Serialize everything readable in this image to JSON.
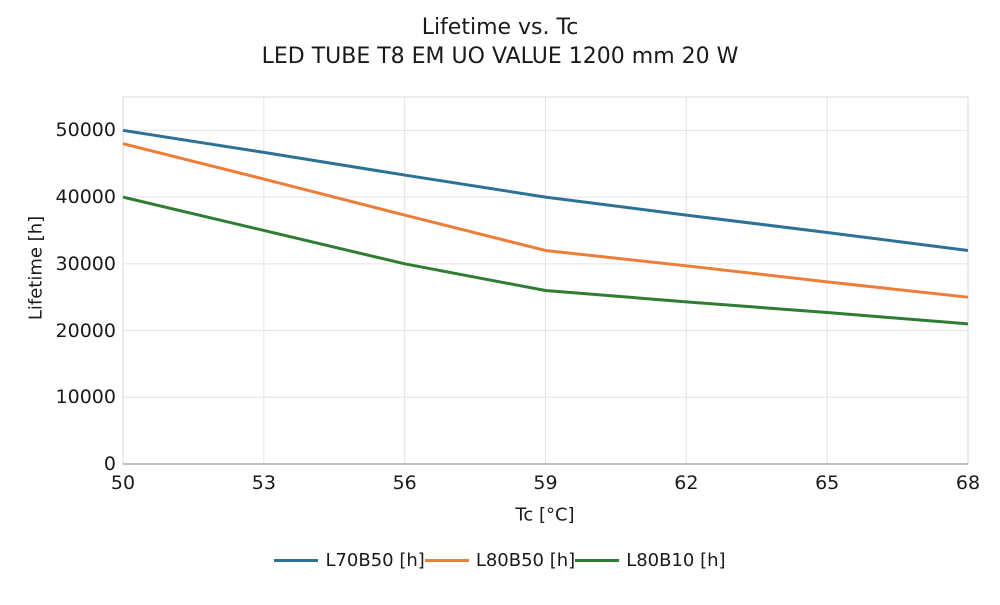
{
  "chart_data": {
    "type": "line",
    "title": "Lifetime vs. Tc",
    "subtitle": "LED TUBE T8 EM UO VALUE 1200 mm 20 W",
    "xlabel": "Tc [°C]",
    "ylabel": "Lifetime [h]",
    "x": [
      50,
      53,
      56,
      59,
      62,
      65,
      68
    ],
    "x_tick_labels": [
      "50",
      "53",
      "56",
      "59",
      "62",
      "65",
      "68"
    ],
    "y_tick_values": [
      0,
      10000,
      20000,
      30000,
      40000,
      50000
    ],
    "y_tick_labels": [
      "0",
      "10000",
      "20000",
      "30000",
      "40000",
      "50000"
    ],
    "xlim": [
      50,
      68
    ],
    "ylim": [
      0,
      55000
    ],
    "grid": true,
    "legend_position": "bottom",
    "series": [
      {
        "name": "L70B50 [h]",
        "color": "#2d7296",
        "values": [
          50000,
          46700,
          43300,
          40000,
          37300,
          34700,
          32000
        ]
      },
      {
        "name": "L80B50 [h]",
        "color": "#ee7d37",
        "values": [
          48000,
          42700,
          37300,
          32000,
          29700,
          27300,
          25000
        ]
      },
      {
        "name": "L80B10 [h]",
        "color": "#2e7d33",
        "values": [
          40000,
          35000,
          30000,
          26000,
          24300,
          22700,
          21000
        ]
      }
    ]
  },
  "colors": {
    "grid": "#e4e4e4",
    "frame": "#d9d9d9",
    "axis": "#ababab",
    "text": "#1a1a1a"
  }
}
